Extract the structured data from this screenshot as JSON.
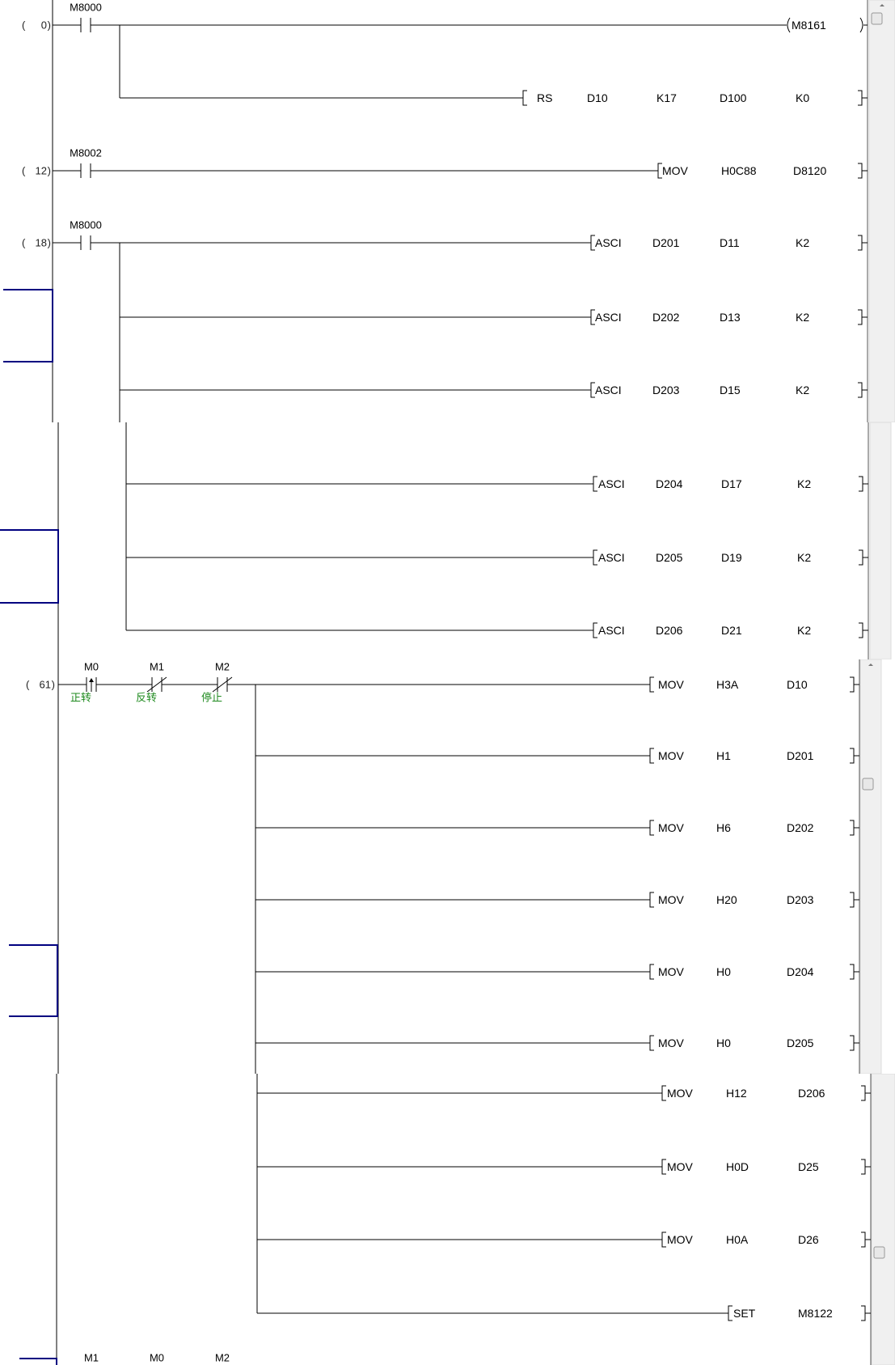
{
  "app": "PLC ladder diagram editor",
  "colors": {
    "wire": "#000000",
    "comment": "#1f8a1f",
    "selection_bracket": "#000080",
    "scrollbar": "#f0f0f0"
  },
  "panels": [
    {
      "rows": [
        {
          "step": "0",
          "contacts": [
            {
              "device": "M8000",
              "type": "normally-open"
            }
          ],
          "output": {
            "kind": "coil",
            "operands": [
              "M8161"
            ]
          }
        },
        {
          "output": {
            "kind": "instruction",
            "operands": [
              "RS",
              "D10",
              "K17",
              "D100",
              "K0"
            ]
          }
        },
        {
          "step": "12",
          "contacts": [
            {
              "device": "M8002",
              "type": "normally-open"
            }
          ],
          "output": {
            "kind": "instruction",
            "operands": [
              "MOV",
              "H0C88",
              "D8120"
            ]
          }
        },
        {
          "step": "18",
          "contacts": [
            {
              "device": "M8000",
              "type": "normally-open"
            }
          ],
          "output": {
            "kind": "instruction",
            "operands": [
              "ASCI",
              "D201",
              "D11",
              "K2"
            ]
          }
        },
        {
          "output": {
            "kind": "instruction",
            "operands": [
              "ASCI",
              "D202",
              "D13",
              "K2"
            ]
          }
        },
        {
          "output": {
            "kind": "instruction",
            "operands": [
              "ASCI",
              "D203",
              "D15",
              "K2"
            ]
          }
        }
      ]
    },
    {
      "rows": [
        {
          "output": {
            "kind": "instruction",
            "operands": [
              "ASCI",
              "D204",
              "D17",
              "K2"
            ]
          }
        },
        {
          "output": {
            "kind": "instruction",
            "operands": [
              "ASCI",
              "D205",
              "D19",
              "K2"
            ]
          }
        },
        {
          "output": {
            "kind": "instruction",
            "operands": [
              "ASCI",
              "D206",
              "D21",
              "K2"
            ]
          }
        }
      ]
    },
    {
      "rows": [
        {
          "step": "61",
          "contacts": [
            {
              "device": "M0",
              "type": "rising-edge",
              "comment": "正转"
            },
            {
              "device": "M1",
              "type": "normally-closed",
              "comment": "反转"
            },
            {
              "device": "M2",
              "type": "normally-closed",
              "comment": "停止"
            }
          ],
          "output": {
            "kind": "instruction",
            "operands": [
              "MOV",
              "H3A",
              "D10"
            ]
          }
        },
        {
          "output": {
            "kind": "instruction",
            "operands": [
              "MOV",
              "H1",
              "D201"
            ]
          }
        },
        {
          "output": {
            "kind": "instruction",
            "operands": [
              "MOV",
              "H6",
              "D202"
            ]
          }
        },
        {
          "output": {
            "kind": "instruction",
            "operands": [
              "MOV",
              "H20",
              "D203"
            ]
          }
        },
        {
          "output": {
            "kind": "instruction",
            "operands": [
              "MOV",
              "H0",
              "D204"
            ]
          }
        },
        {
          "output": {
            "kind": "instruction",
            "operands": [
              "MOV",
              "H0",
              "D205"
            ]
          }
        }
      ]
    },
    {
      "rows": [
        {
          "output": {
            "kind": "instruction",
            "operands": [
              "MOV",
              "H12",
              "D206"
            ]
          }
        },
        {
          "output": {
            "kind": "instruction",
            "operands": [
              "MOV",
              "H0D",
              "D25"
            ]
          }
        },
        {
          "output": {
            "kind": "instruction",
            "operands": [
              "MOV",
              "H0A",
              "D26"
            ]
          }
        },
        {
          "output": {
            "kind": "instruction",
            "operands": [
              "SET",
              "M8122"
            ]
          }
        },
        {
          "contacts": [
            {
              "device": "M1",
              "type": "partial"
            },
            {
              "device": "M0",
              "type": "partial"
            },
            {
              "device": "M2",
              "type": "partial"
            }
          ]
        }
      ]
    }
  ]
}
